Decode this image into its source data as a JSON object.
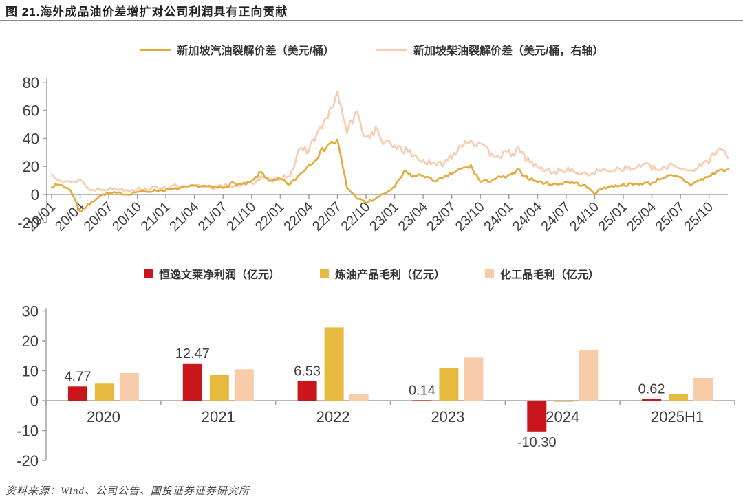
{
  "page": {
    "title": "图 21.海外成品油价差增扩对公司利润具有正向贡献",
    "source": "资料来源：Wind、公司公告、国投证券证券研究所"
  },
  "colors": {
    "gasoline_line": "#E3A93B",
    "diesel_line": "#F6CDB2",
    "net_profit_red": "#C9161D",
    "refining_gold": "#E6B93F",
    "chemical_peach": "#F8CCA9",
    "axis": "#A0A0A0",
    "text": "#3F3F3F"
  },
  "chart_data": [
    {
      "type": "line",
      "x_start": "20/01",
      "x_end": "25/12",
      "x_unit": "month",
      "x_tick_labels": [
        "20/01",
        "20/04",
        "20/07",
        "20/10",
        "21/01",
        "21/04",
        "21/07",
        "21/10",
        "22/01",
        "22/04",
        "22/07",
        "22/10",
        "23/01",
        "23/04",
        "23/07",
        "23/10",
        "24/01",
        "24/04",
        "24/07",
        "24/10",
        "25/01",
        "25/04",
        "25/07",
        "25/10"
      ],
      "ylim": [
        -20,
        80
      ],
      "y_ticks": [
        80,
        60,
        40,
        20,
        0,
        -20
      ],
      "legend_position": "top",
      "series": [
        {
          "name": "新加坡汽油裂解价差（美元/桶）",
          "axis": "left",
          "color_key": "gasoline_line",
          "values": [
            6,
            7,
            3,
            -12,
            -7,
            -1,
            1,
            1,
            0,
            2,
            2,
            3,
            3,
            4,
            5,
            6,
            6,
            5,
            5,
            8,
            7,
            9,
            16,
            9,
            11,
            7,
            14,
            21,
            28,
            36,
            38,
            5,
            -2,
            -6,
            -3,
            1,
            5,
            16,
            13,
            14,
            10,
            11,
            15,
            18,
            20,
            9,
            10,
            12,
            13,
            17,
            12,
            9,
            8,
            7,
            9,
            8,
            6,
            1,
            5,
            6,
            7,
            7,
            8,
            8,
            12,
            13,
            12,
            7,
            10,
            13,
            17,
            18
          ]
        },
        {
          "name": "新加坡柴油裂解价差（美元/桶，右轴）",
          "axis": "right",
          "color_key": "diesel_line",
          "values": [
            14,
            11,
            8,
            11,
            3,
            4,
            4,
            4,
            3,
            4,
            4,
            5,
            5,
            6,
            5,
            6,
            6,
            5,
            6,
            6,
            7,
            8,
            12,
            10,
            12,
            14,
            30,
            33,
            45,
            55,
            72,
            45,
            58,
            40,
            46,
            36,
            35,
            32,
            28,
            24,
            21,
            22,
            28,
            36,
            39,
            34,
            30,
            28,
            29,
            31,
            25,
            19,
            17,
            16,
            18,
            16,
            14,
            16,
            17,
            18,
            19,
            18,
            22,
            19,
            17,
            22,
            19,
            17,
            20,
            24,
            35,
            26
          ]
        }
      ]
    },
    {
      "type": "bar",
      "categories": [
        "2020",
        "2021",
        "2022",
        "2023",
        "2024",
        "2025H1"
      ],
      "ylim": [
        -20,
        30
      ],
      "y_ticks": [
        30,
        20,
        10,
        0,
        -10,
        -20
      ],
      "legend_position": "top",
      "series": [
        {
          "name": "恒逸文莱净利润（亿元）",
          "color_key": "net_profit_red",
          "values": [
            4.77,
            12.47,
            6.53,
            0.14,
            -10.3,
            0.62
          ],
          "data_labels": [
            "4.77",
            "12.47",
            "6.53",
            "0.14",
            "-10.30",
            "0.62"
          ]
        },
        {
          "name": "炼油产品毛利（亿元）",
          "color_key": "refining_gold",
          "values": [
            5.7,
            8.7,
            24.5,
            11.0,
            -0.4,
            2.3
          ],
          "data_labels": null
        },
        {
          "name": "化工品毛利（亿元）",
          "color_key": "chemical_peach",
          "values": [
            9.2,
            10.5,
            2.3,
            14.4,
            16.8,
            7.6
          ],
          "data_labels": null
        }
      ]
    }
  ]
}
